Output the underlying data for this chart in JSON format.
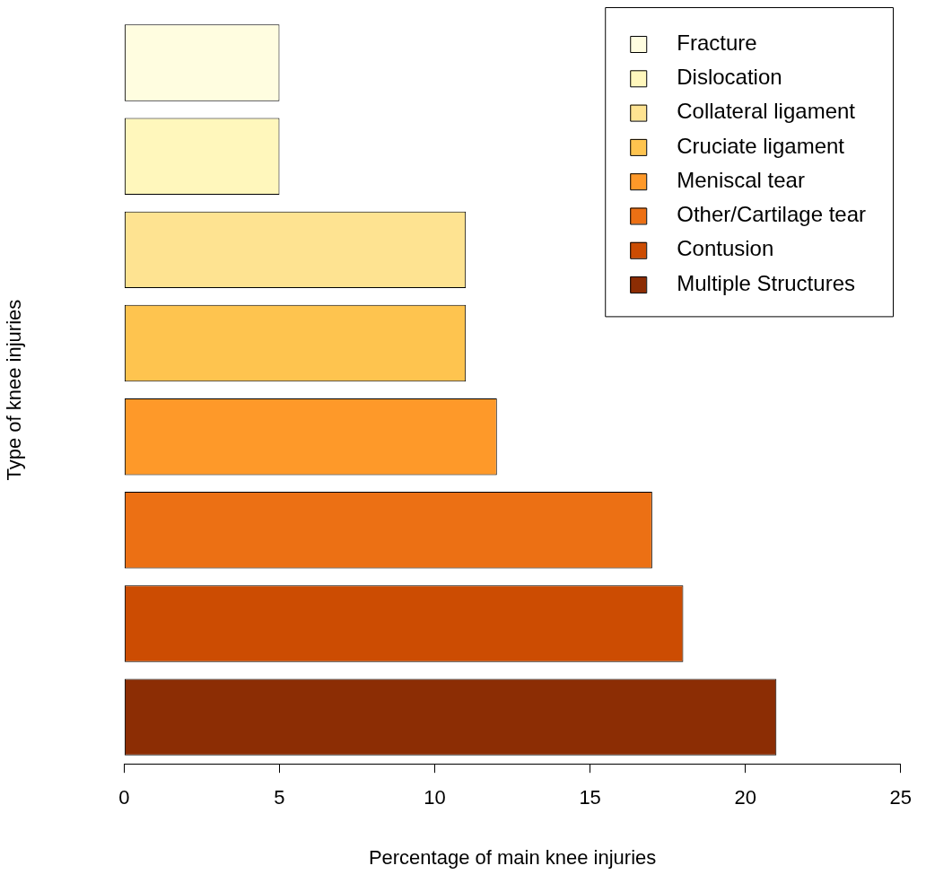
{
  "chart_data": {
    "type": "bar",
    "orientation": "horizontal",
    "stacked": true,
    "xlabel": "Percentage of main knee injuries",
    "ylabel": "Type of knee injuries",
    "categories": [
      null,
      null,
      null,
      null,
      null,
      null,
      null,
      null
    ],
    "series": [
      {
        "name": "Fracture",
        "color": "#fffde0",
        "values": [
          5,
          null,
          null,
          null,
          null,
          null,
          null,
          null
        ]
      },
      {
        "name": "Dislocation",
        "color": "#fff7bc",
        "values": [
          null,
          5,
          null,
          null,
          null,
          null,
          null,
          null
        ]
      },
      {
        "name": "Collateral ligament",
        "color": "#fee391",
        "values": [
          null,
          null,
          11,
          null,
          null,
          null,
          null,
          null
        ]
      },
      {
        "name": "Cruciate ligament",
        "color": "#fec44f",
        "values": [
          null,
          null,
          null,
          11,
          null,
          null,
          null,
          null
        ]
      },
      {
        "name": "Meniscal tear",
        "color": "#fe9929",
        "values": [
          null,
          null,
          null,
          null,
          12,
          null,
          null,
          null
        ]
      },
      {
        "name": "Other/Cartilage tear",
        "color": "#ec7014",
        "values": [
          null,
          null,
          null,
          null,
          null,
          17,
          null,
          null
        ]
      },
      {
        "name": "Contusion",
        "color": "#cc4c02",
        "values": [
          null,
          null,
          null,
          null,
          null,
          null,
          18,
          null
        ]
      },
      {
        "name": "Multiple Structures",
        "color": "#8c2d04",
        "values": [
          null,
          null,
          null,
          null,
          null,
          null,
          null,
          21
        ]
      }
    ],
    "xlim": [
      0,
      25
    ],
    "xticks": [
      0,
      5,
      10,
      15,
      20,
      25
    ],
    "tick_labels": "x",
    "grid": false,
    "legend": "top right"
  }
}
